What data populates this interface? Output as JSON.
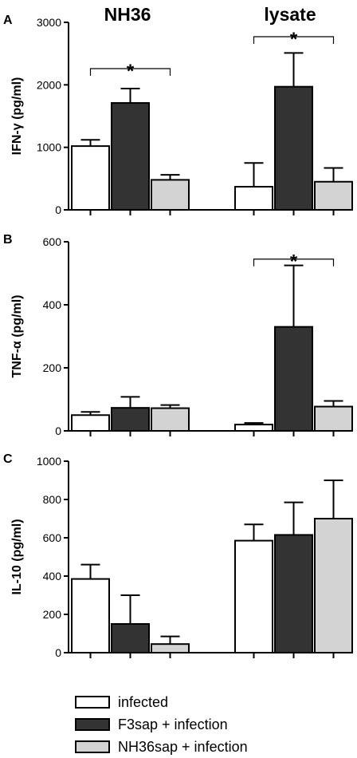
{
  "colors": {
    "infected": "#ffffff",
    "f3sap": "#333333",
    "nh36sap": "#d3d3d3",
    "stroke": "#000000"
  },
  "column_titles": [
    "NH36",
    "lysate"
  ],
  "legend": [
    {
      "label": "infected",
      "color": "#ffffff"
    },
    {
      "label": "F3sap + infection",
      "color": "#333333"
    },
    {
      "label": "NH36sap + infection",
      "color": "#d3d3d3"
    }
  ],
  "chart_data": [
    {
      "type": "bar",
      "panel": "A",
      "title": "",
      "ylabel": "IFN-γ (pg/ml)",
      "xlabel": "",
      "ylim": [
        0,
        3000
      ],
      "yticks": [
        0,
        1000,
        2000,
        3000
      ],
      "categories": [
        "NH36",
        "lysate"
      ],
      "series": [
        {
          "name": "infected",
          "values": [
            1020,
            370
          ],
          "errors": [
            100,
            380
          ]
        },
        {
          "name": "F3sap + infection",
          "values": [
            1710,
            1970
          ],
          "errors": [
            230,
            540
          ]
        },
        {
          "name": "NH36sap + infection",
          "values": [
            480,
            450
          ],
          "errors": [
            80,
            220
          ]
        }
      ],
      "annotations": [
        {
          "text": "*",
          "category": "NH36",
          "from_series": 0,
          "to_series": 2,
          "y": 2260
        },
        {
          "text": "*",
          "category": "lysate",
          "from_series": 0,
          "to_series": 2,
          "y": 2770
        }
      ]
    },
    {
      "type": "bar",
      "panel": "B",
      "title": "",
      "ylabel": "TNF-α (pg/ml)",
      "xlabel": "",
      "ylim": [
        0,
        600
      ],
      "yticks": [
        0,
        200,
        400,
        600
      ],
      "categories": [
        "NH36",
        "lysate"
      ],
      "series": [
        {
          "name": "infected",
          "values": [
            50,
            20
          ],
          "errors": [
            10,
            5
          ]
        },
        {
          "name": "F3sap + infection",
          "values": [
            73,
            330
          ],
          "errors": [
            35,
            195
          ]
        },
        {
          "name": "NH36sap + infection",
          "values": [
            72,
            77
          ],
          "errors": [
            10,
            18
          ]
        }
      ],
      "annotations": [
        {
          "text": "*",
          "category": "lysate",
          "from_series": 0,
          "to_series": 2,
          "y": 545
        }
      ]
    },
    {
      "type": "bar",
      "panel": "C",
      "title": "",
      "ylabel": "IL-10 (pg/ml)",
      "xlabel": "",
      "ylim": [
        0,
        1000
      ],
      "yticks": [
        0,
        200,
        400,
        600,
        800,
        1000
      ],
      "categories": [
        "NH36",
        "lysate"
      ],
      "series": [
        {
          "name": "infected",
          "values": [
            385,
            585
          ],
          "errors": [
            75,
            85
          ]
        },
        {
          "name": "F3sap + infection",
          "values": [
            150,
            615
          ],
          "errors": [
            150,
            170
          ]
        },
        {
          "name": "NH36sap + infection",
          "values": [
            45,
            700
          ],
          "errors": [
            40,
            200
          ]
        }
      ],
      "annotations": []
    }
  ]
}
